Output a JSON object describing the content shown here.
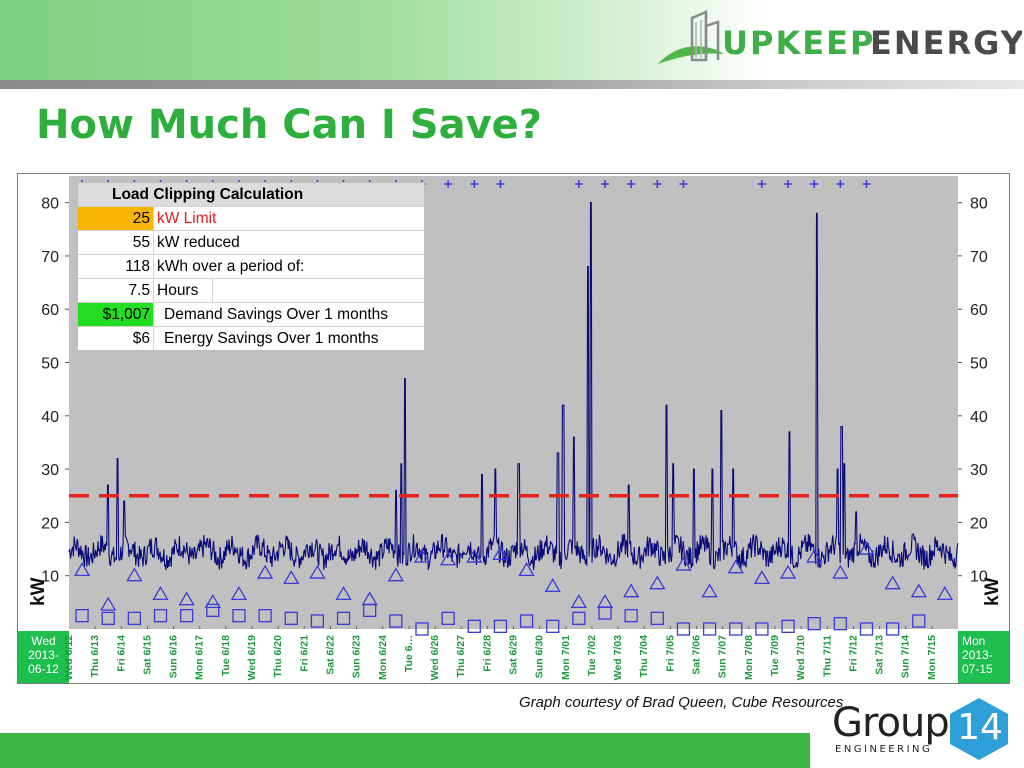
{
  "slide": {
    "title": "How Much Can I Save?",
    "credit": "Graph courtesy of Brad Queen, Cube Resources"
  },
  "brand": {
    "upkeep_name": "UPKEEP",
    "energy_name": "ENERGY",
    "upkeep_color": "#3fae48",
    "energy_color": "#4a4a4a",
    "group_word": "Group",
    "group_num": "14",
    "group_sub": "ENGINEERING",
    "group_hex_color": "#2f9fd8"
  },
  "calc": {
    "title": "Load Clipping Calculation",
    "rows": [
      {
        "value": "25",
        "label": "kW Limit"
      },
      {
        "value": "55",
        "label": "kW reduced"
      },
      {
        "value": "118",
        "label": "kWh over a period of:"
      },
      {
        "value": "7.5",
        "label": "Hours"
      },
      {
        "value": "$1,007",
        "label": "Demand Savings Over 1 months"
      },
      {
        "value": "$6",
        "label": "Energy Savings Over 1 months"
      }
    ]
  },
  "chart_data": {
    "type": "line",
    "ylabel": "kW",
    "ylim": [
      0,
      85
    ],
    "yticks": [
      10,
      20,
      30,
      40,
      50,
      60,
      70,
      80
    ],
    "grid": false,
    "limit_line": {
      "value": 25,
      "color": "#e8231f"
    },
    "colors": {
      "plot_bg": "#c0c0c0",
      "series": "#0a0a78",
      "markers": "#3a3ad8",
      "date_band": "#1fbf4f"
    },
    "start_label": [
      "Wed",
      "2013-",
      "06-12"
    ],
    "end_label": [
      "Mon",
      "2013-",
      "07-15"
    ],
    "day_labels": [
      "Wed 6/12",
      "Thu 6/13",
      "Fri 6/14",
      "Sat 6/15",
      "Sun 6/16",
      "Mon 6/17",
      "Tue 6/18",
      "Wed 6/19",
      "Thu 6/20",
      "Fri 6/21",
      "Sat 6/22",
      "Sun 6/23",
      "Mon 6/24",
      "Tue 6…",
      "Wed 6/26",
      "Thu 6/27",
      "Fri 6/28",
      "Sat 6/29",
      "Sun 6/30",
      "Mon 7/01",
      "Tue 7/02",
      "Wed 7/03",
      "Thu 7/04",
      "Fri 7/05",
      "Sat 7/06",
      "Sun 7/07",
      "Mon 7/08",
      "Tue 7/09",
      "Wed 7/10",
      "Thu 7/11",
      "Fri 7/12",
      "Sat 7/13",
      "Sun 7/14",
      "Mon 7/15"
    ],
    "baseline_kw": 14.5,
    "spikes": [
      {
        "day": 1.5,
        "kw": 27
      },
      {
        "day": 1.85,
        "kw": 32
      },
      {
        "day": 2.1,
        "kw": 24
      },
      {
        "day": 12.5,
        "kw": 26
      },
      {
        "day": 12.7,
        "kw": 31
      },
      {
        "day": 12.85,
        "kw": 47
      },
      {
        "day": 15.8,
        "kw": 29
      },
      {
        "day": 16.3,
        "kw": 30
      },
      {
        "day": 17.2,
        "kw": 31
      },
      {
        "day": 18.7,
        "kw": 33
      },
      {
        "day": 18.9,
        "kw": 42
      },
      {
        "day": 19.3,
        "kw": 36
      },
      {
        "day": 19.85,
        "kw": 68
      },
      {
        "day": 19.95,
        "kw": 80
      },
      {
        "day": 21.4,
        "kw": 27
      },
      {
        "day": 22.85,
        "kw": 42
      },
      {
        "day": 23.1,
        "kw": 31
      },
      {
        "day": 23.9,
        "kw": 30
      },
      {
        "day": 24.6,
        "kw": 30
      },
      {
        "day": 24.95,
        "kw": 41
      },
      {
        "day": 25.4,
        "kw": 30
      },
      {
        "day": 27.55,
        "kw": 37
      },
      {
        "day": 28.6,
        "kw": 78
      },
      {
        "day": 29.4,
        "kw": 30
      },
      {
        "day": 29.55,
        "kw": 38
      },
      {
        "day": 29.65,
        "kw": 31
      },
      {
        "day": 30.1,
        "kw": 22
      }
    ],
    "triangle_markers": [
      {
        "day": 0.5,
        "kw": 11
      },
      {
        "day": 1.5,
        "kw": 4.5
      },
      {
        "day": 2.5,
        "kw": 10
      },
      {
        "day": 3.5,
        "kw": 6.5
      },
      {
        "day": 4.5,
        "kw": 5.5
      },
      {
        "day": 5.5,
        "kw": 5
      },
      {
        "day": 6.5,
        "kw": 6.5
      },
      {
        "day": 7.5,
        "kw": 10.5
      },
      {
        "day": 8.5,
        "kw": 9.5
      },
      {
        "day": 9.5,
        "kw": 10.5
      },
      {
        "day": 10.5,
        "kw": 6.5
      },
      {
        "day": 11.5,
        "kw": 5.5
      },
      {
        "day": 12.5,
        "kw": 10
      },
      {
        "day": 13.5,
        "kw": 13.5
      },
      {
        "day": 14.5,
        "kw": 13
      },
      {
        "day": 15.5,
        "kw": 13.5
      },
      {
        "day": 16.5,
        "kw": 14
      },
      {
        "day": 17.5,
        "kw": 11
      },
      {
        "day": 18.5,
        "kw": 8
      },
      {
        "day": 19.5,
        "kw": 5
      },
      {
        "day": 20.5,
        "kw": 5
      },
      {
        "day": 21.5,
        "kw": 7
      },
      {
        "day": 22.5,
        "kw": 8.5
      },
      {
        "day": 23.5,
        "kw": 12
      },
      {
        "day": 24.5,
        "kw": 7
      },
      {
        "day": 25.5,
        "kw": 11.5
      },
      {
        "day": 26.5,
        "kw": 9.5
      },
      {
        "day": 27.5,
        "kw": 10.5
      },
      {
        "day": 28.5,
        "kw": 13.5
      },
      {
        "day": 29.5,
        "kw": 10.5
      },
      {
        "day": 30.5,
        "kw": 15
      },
      {
        "day": 31.5,
        "kw": 8.5
      },
      {
        "day": 32.5,
        "kw": 7
      },
      {
        "day": 33.5,
        "kw": 6.5
      }
    ],
    "square_markers": [
      {
        "day": 0.5,
        "kw": 2.5
      },
      {
        "day": 1.5,
        "kw": 2
      },
      {
        "day": 2.5,
        "kw": 2
      },
      {
        "day": 3.5,
        "kw": 2.5
      },
      {
        "day": 4.5,
        "kw": 2.5
      },
      {
        "day": 5.5,
        "kw": 3.5
      },
      {
        "day": 6.5,
        "kw": 2.5
      },
      {
        "day": 7.5,
        "kw": 2.5
      },
      {
        "day": 8.5,
        "kw": 2
      },
      {
        "day": 9.5,
        "kw": 1.5
      },
      {
        "day": 10.5,
        "kw": 2
      },
      {
        "day": 11.5,
        "kw": 3.5
      },
      {
        "day": 12.5,
        "kw": 1.5
      },
      {
        "day": 13.5,
        "kw": 0
      },
      {
        "day": 14.5,
        "kw": 2
      },
      {
        "day": 15.5,
        "kw": 0.5
      },
      {
        "day": 16.5,
        "kw": 0.5
      },
      {
        "day": 17.5,
        "kw": 1.5
      },
      {
        "day": 18.5,
        "kw": 0.5
      },
      {
        "day": 19.5,
        "kw": 2
      },
      {
        "day": 20.5,
        "kw": 3
      },
      {
        "day": 21.5,
        "kw": 2.5
      },
      {
        "day": 22.5,
        "kw": 2
      },
      {
        "day": 23.5,
        "kw": 0
      },
      {
        "day": 24.5,
        "kw": 0
      },
      {
        "day": 25.5,
        "kw": 0
      },
      {
        "day": 26.5,
        "kw": 0
      },
      {
        "day": 27.5,
        "kw": 0.5
      },
      {
        "day": 28.5,
        "kw": 1
      },
      {
        "day": 29.5,
        "kw": 1
      },
      {
        "day": 30.5,
        "kw": 0
      },
      {
        "day": 31.5,
        "kw": 0
      },
      {
        "day": 32.5,
        "kw": 1.5
      }
    ],
    "plus_markers_days": [
      0.5,
      1.5,
      2.5,
      3.5,
      4.5,
      5.5,
      6.5,
      7.5,
      8.5,
      9.5,
      10.5,
      11.5,
      12.5,
      13.5,
      14.5,
      15.5,
      16.5,
      19.5,
      20.5,
      21.5,
      22.5,
      23.5,
      26.5,
      27.5,
      28.5,
      29.5,
      30.5
    ]
  }
}
